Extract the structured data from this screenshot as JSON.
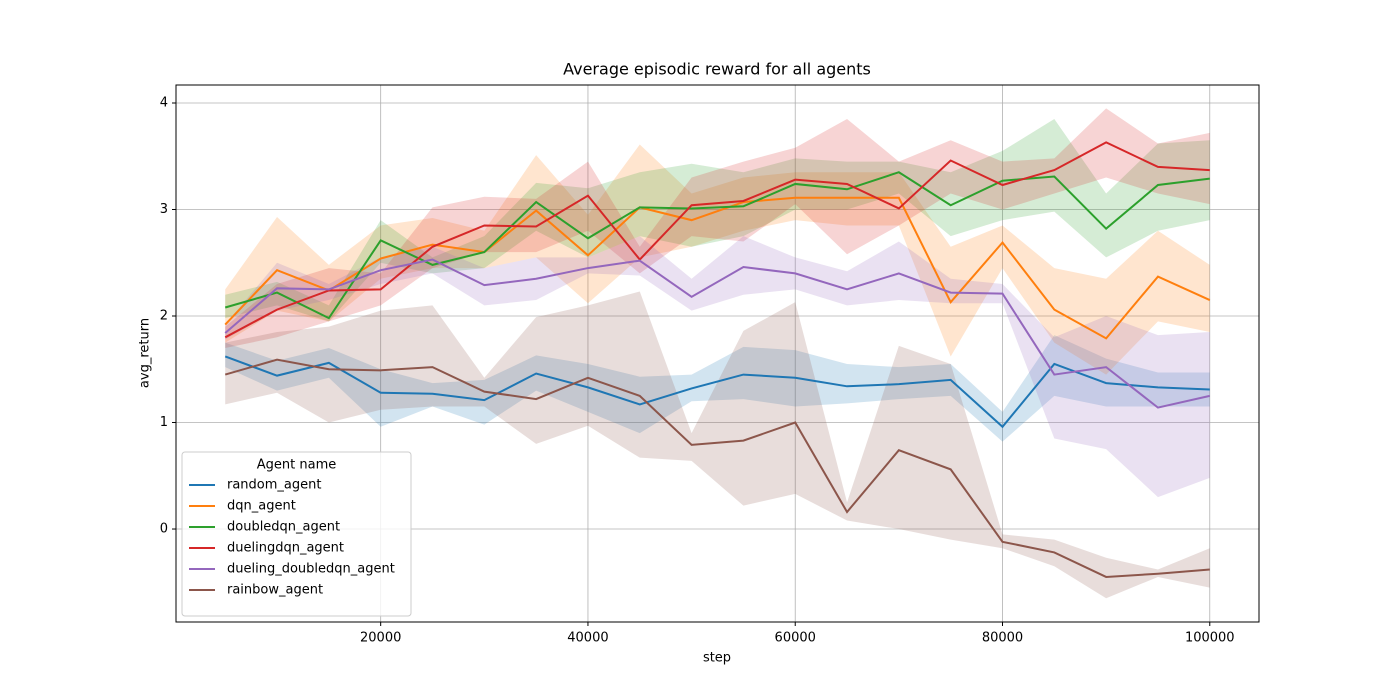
{
  "chart_data": {
    "type": "line",
    "title": "Average episodic reward for all agents",
    "x_label": "step",
    "y_label": "avg_return",
    "x": [
      5000,
      10000,
      15000,
      20000,
      25000,
      30000,
      35000,
      40000,
      45000,
      50000,
      55000,
      60000,
      65000,
      70000,
      75000,
      80000,
      85000,
      90000,
      95000,
      100000
    ],
    "xlim": [
      250,
      104750
    ],
    "ylim": [
      -0.873,
      4.169
    ],
    "xticks": [
      20000,
      40000,
      60000,
      80000,
      100000
    ],
    "yticks": [
      0,
      1,
      2,
      3,
      4
    ],
    "grid": true,
    "legend_title": "Agent name",
    "legend_position": "lower left",
    "series": [
      {
        "name": "random_agent",
        "color": "#1f77b4",
        "values": [
          1.62,
          1.44,
          1.56,
          1.28,
          1.27,
          1.21,
          1.46,
          1.33,
          1.17,
          1.32,
          1.45,
          1.42,
          1.34,
          1.36,
          1.4,
          0.96,
          1.55,
          1.37,
          1.33,
          1.31
        ],
        "lower": [
          1.52,
          1.3,
          1.42,
          0.96,
          1.15,
          0.98,
          1.3,
          1.1,
          0.9,
          1.2,
          1.22,
          1.15,
          1.18,
          1.22,
          1.25,
          0.82,
          1.25,
          1.15,
          1.15,
          1.15
        ],
        "upper": [
          1.75,
          1.58,
          1.7,
          1.5,
          1.37,
          1.4,
          1.63,
          1.55,
          1.43,
          1.45,
          1.71,
          1.68,
          1.55,
          1.52,
          1.55,
          1.1,
          1.82,
          1.6,
          1.47,
          1.47
        ]
      },
      {
        "name": "dqn_agent",
        "color": "#ff7f0e",
        "values": [
          1.92,
          2.43,
          2.24,
          2.54,
          2.67,
          2.6,
          2.99,
          2.57,
          3.02,
          2.9,
          3.07,
          3.11,
          3.11,
          3.11,
          2.13,
          2.69,
          2.06,
          1.79,
          2.37,
          2.15
        ],
        "lower": [
          1.75,
          2.05,
          1.95,
          2.35,
          2.45,
          2.45,
          2.55,
          2.12,
          2.55,
          2.65,
          2.8,
          2.9,
          2.85,
          2.85,
          1.62,
          2.45,
          1.75,
          1.45,
          1.95,
          1.85
        ],
        "upper": [
          2.25,
          2.93,
          2.48,
          2.85,
          2.92,
          2.8,
          3.51,
          2.95,
          3.61,
          3.15,
          3.3,
          3.35,
          3.35,
          3.35,
          2.65,
          2.85,
          2.45,
          2.35,
          2.8,
          2.48
        ]
      },
      {
        "name": "doubledqn_agent",
        "color": "#2ca02c",
        "values": [
          2.08,
          2.22,
          1.98,
          2.71,
          2.48,
          2.6,
          3.07,
          2.73,
          3.02,
          3.01,
          3.03,
          3.24,
          3.19,
          3.35,
          3.04,
          3.27,
          3.31,
          2.82,
          3.23,
          3.29
        ],
        "lower": [
          1.98,
          2.1,
          1.95,
          2.5,
          2.4,
          2.45,
          2.8,
          2.55,
          2.75,
          2.65,
          2.75,
          3.0,
          3.0,
          3.15,
          2.75,
          2.9,
          2.98,
          2.55,
          2.8,
          2.9
        ],
        "upper": [
          2.2,
          2.32,
          2.1,
          2.9,
          2.55,
          2.75,
          3.25,
          3.2,
          3.35,
          3.43,
          3.35,
          3.48,
          3.45,
          3.45,
          3.35,
          3.55,
          3.85,
          3.15,
          3.62,
          3.65
        ]
      },
      {
        "name": "duelingdqn_agent",
        "color": "#d62728",
        "values": [
          1.8,
          2.06,
          2.24,
          2.25,
          2.65,
          2.85,
          2.84,
          3.13,
          2.53,
          3.04,
          3.08,
          3.28,
          3.24,
          3.01,
          3.46,
          3.23,
          3.37,
          3.63,
          3.4,
          3.37
        ],
        "lower": [
          1.7,
          1.8,
          1.95,
          2.1,
          2.45,
          2.6,
          2.6,
          2.8,
          2.4,
          2.75,
          2.7,
          3.05,
          2.58,
          2.85,
          3.15,
          3.0,
          3.15,
          3.3,
          3.15,
          3.05
        ],
        "upper": [
          1.9,
          2.3,
          2.45,
          2.4,
          3.02,
          3.12,
          3.1,
          3.45,
          2.65,
          3.3,
          3.45,
          3.58,
          3.85,
          3.45,
          3.65,
          3.45,
          3.48,
          3.95,
          3.62,
          3.72
        ]
      },
      {
        "name": "dueling_doubledqn_agent",
        "color": "#9467bd",
        "values": [
          1.84,
          2.26,
          2.25,
          2.43,
          2.53,
          2.29,
          2.35,
          2.45,
          2.52,
          2.18,
          2.46,
          2.4,
          2.25,
          2.4,
          2.22,
          2.21,
          1.45,
          1.52,
          1.14,
          1.25
        ],
        "lower": [
          1.78,
          2.05,
          2.15,
          2.3,
          2.4,
          2.1,
          2.15,
          2.4,
          2.38,
          2.05,
          2.2,
          2.25,
          2.1,
          2.15,
          2.12,
          2.12,
          0.85,
          0.75,
          0.3,
          0.48
        ],
        "upper": [
          1.92,
          2.5,
          2.3,
          2.55,
          2.65,
          2.45,
          2.55,
          2.55,
          2.75,
          2.35,
          2.75,
          2.55,
          2.42,
          2.7,
          2.35,
          2.3,
          1.8,
          2.0,
          1.82,
          1.85
        ]
      },
      {
        "name": "rainbow_agent",
        "color": "#8c564b",
        "values": [
          1.45,
          1.59,
          1.5,
          1.49,
          1.52,
          1.29,
          1.22,
          1.42,
          1.25,
          0.79,
          0.83,
          1.0,
          0.16,
          0.74,
          0.56,
          -0.12,
          -0.22,
          -0.45,
          -0.42,
          -0.38
        ],
        "lower": [
          1.17,
          1.28,
          1.0,
          1.12,
          1.15,
          1.15,
          0.8,
          0.97,
          0.67,
          0.64,
          0.22,
          0.33,
          0.08,
          0.0,
          -0.1,
          -0.18,
          -0.35,
          -0.65,
          -0.45,
          -0.55
        ],
        "upper": [
          1.75,
          1.85,
          1.9,
          2.05,
          2.1,
          1.42,
          1.99,
          2.1,
          2.23,
          0.9,
          1.86,
          2.13,
          0.25,
          1.72,
          1.55,
          -0.05,
          -0.1,
          -0.27,
          -0.38,
          -0.18
        ]
      }
    ]
  }
}
